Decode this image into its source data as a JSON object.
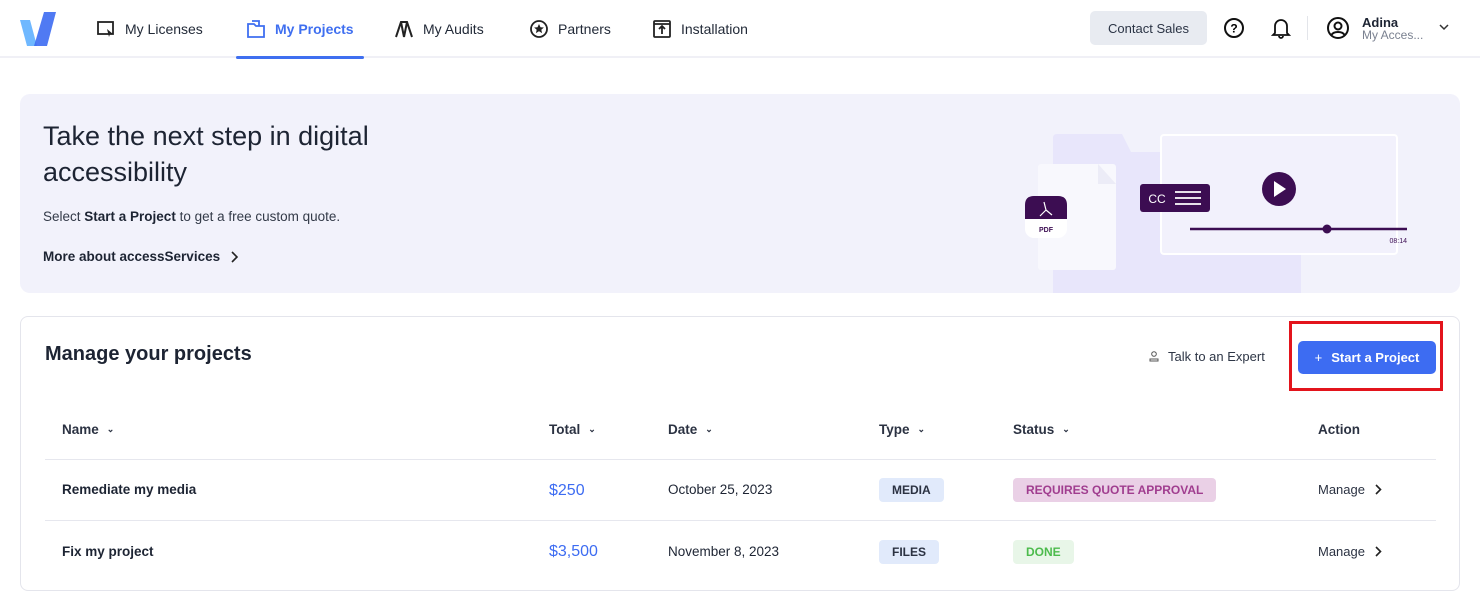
{
  "nav": {
    "items": [
      {
        "label": "My Licenses",
        "icon": "license-icon"
      },
      {
        "label": "My Projects",
        "icon": "projects-icon",
        "active": true
      },
      {
        "label": "My Audits",
        "icon": "audits-icon"
      },
      {
        "label": "Partners",
        "icon": "star-icon"
      },
      {
        "label": "Installation",
        "icon": "installation-icon"
      }
    ],
    "contact_sales": "Contact Sales",
    "user_name": "Adina",
    "user_sub": "My Acces..."
  },
  "banner": {
    "title": "Take the next step in digital accessibility",
    "sub_pre": "Select ",
    "sub_bold": "Start a Project",
    "sub_post": " to get a free custom quote.",
    "link": "More about accessServices",
    "pdf_label": "PDF",
    "cc_label": "CC",
    "video_time": "08:14"
  },
  "projects": {
    "title": "Manage your projects",
    "talk": "Talk to an Expert",
    "start": "Start a Project",
    "columns": [
      "Name",
      "Total",
      "Date",
      "Type",
      "Status",
      "Action"
    ],
    "rows": [
      {
        "name": "Remediate my media",
        "total": "$250",
        "date": "October 25, 2023",
        "type": "MEDIA",
        "status": "REQUIRES QUOTE APPROVAL",
        "action": "Manage"
      },
      {
        "name": "Fix my project",
        "total": "$3,500",
        "date": "November 8, 2023",
        "type": "FILES",
        "status": "DONE",
        "action": "Manage"
      }
    ]
  },
  "colors": {
    "accent": "#3d6cf2",
    "brand_purple": "#3c0d52",
    "status_pending_bg": "#ead0e6",
    "status_pending_fg": "#a03d8f",
    "status_done_bg": "#e8f6e8",
    "status_done_fg": "#4cbb4c",
    "type_bg": "#e1eafb"
  }
}
